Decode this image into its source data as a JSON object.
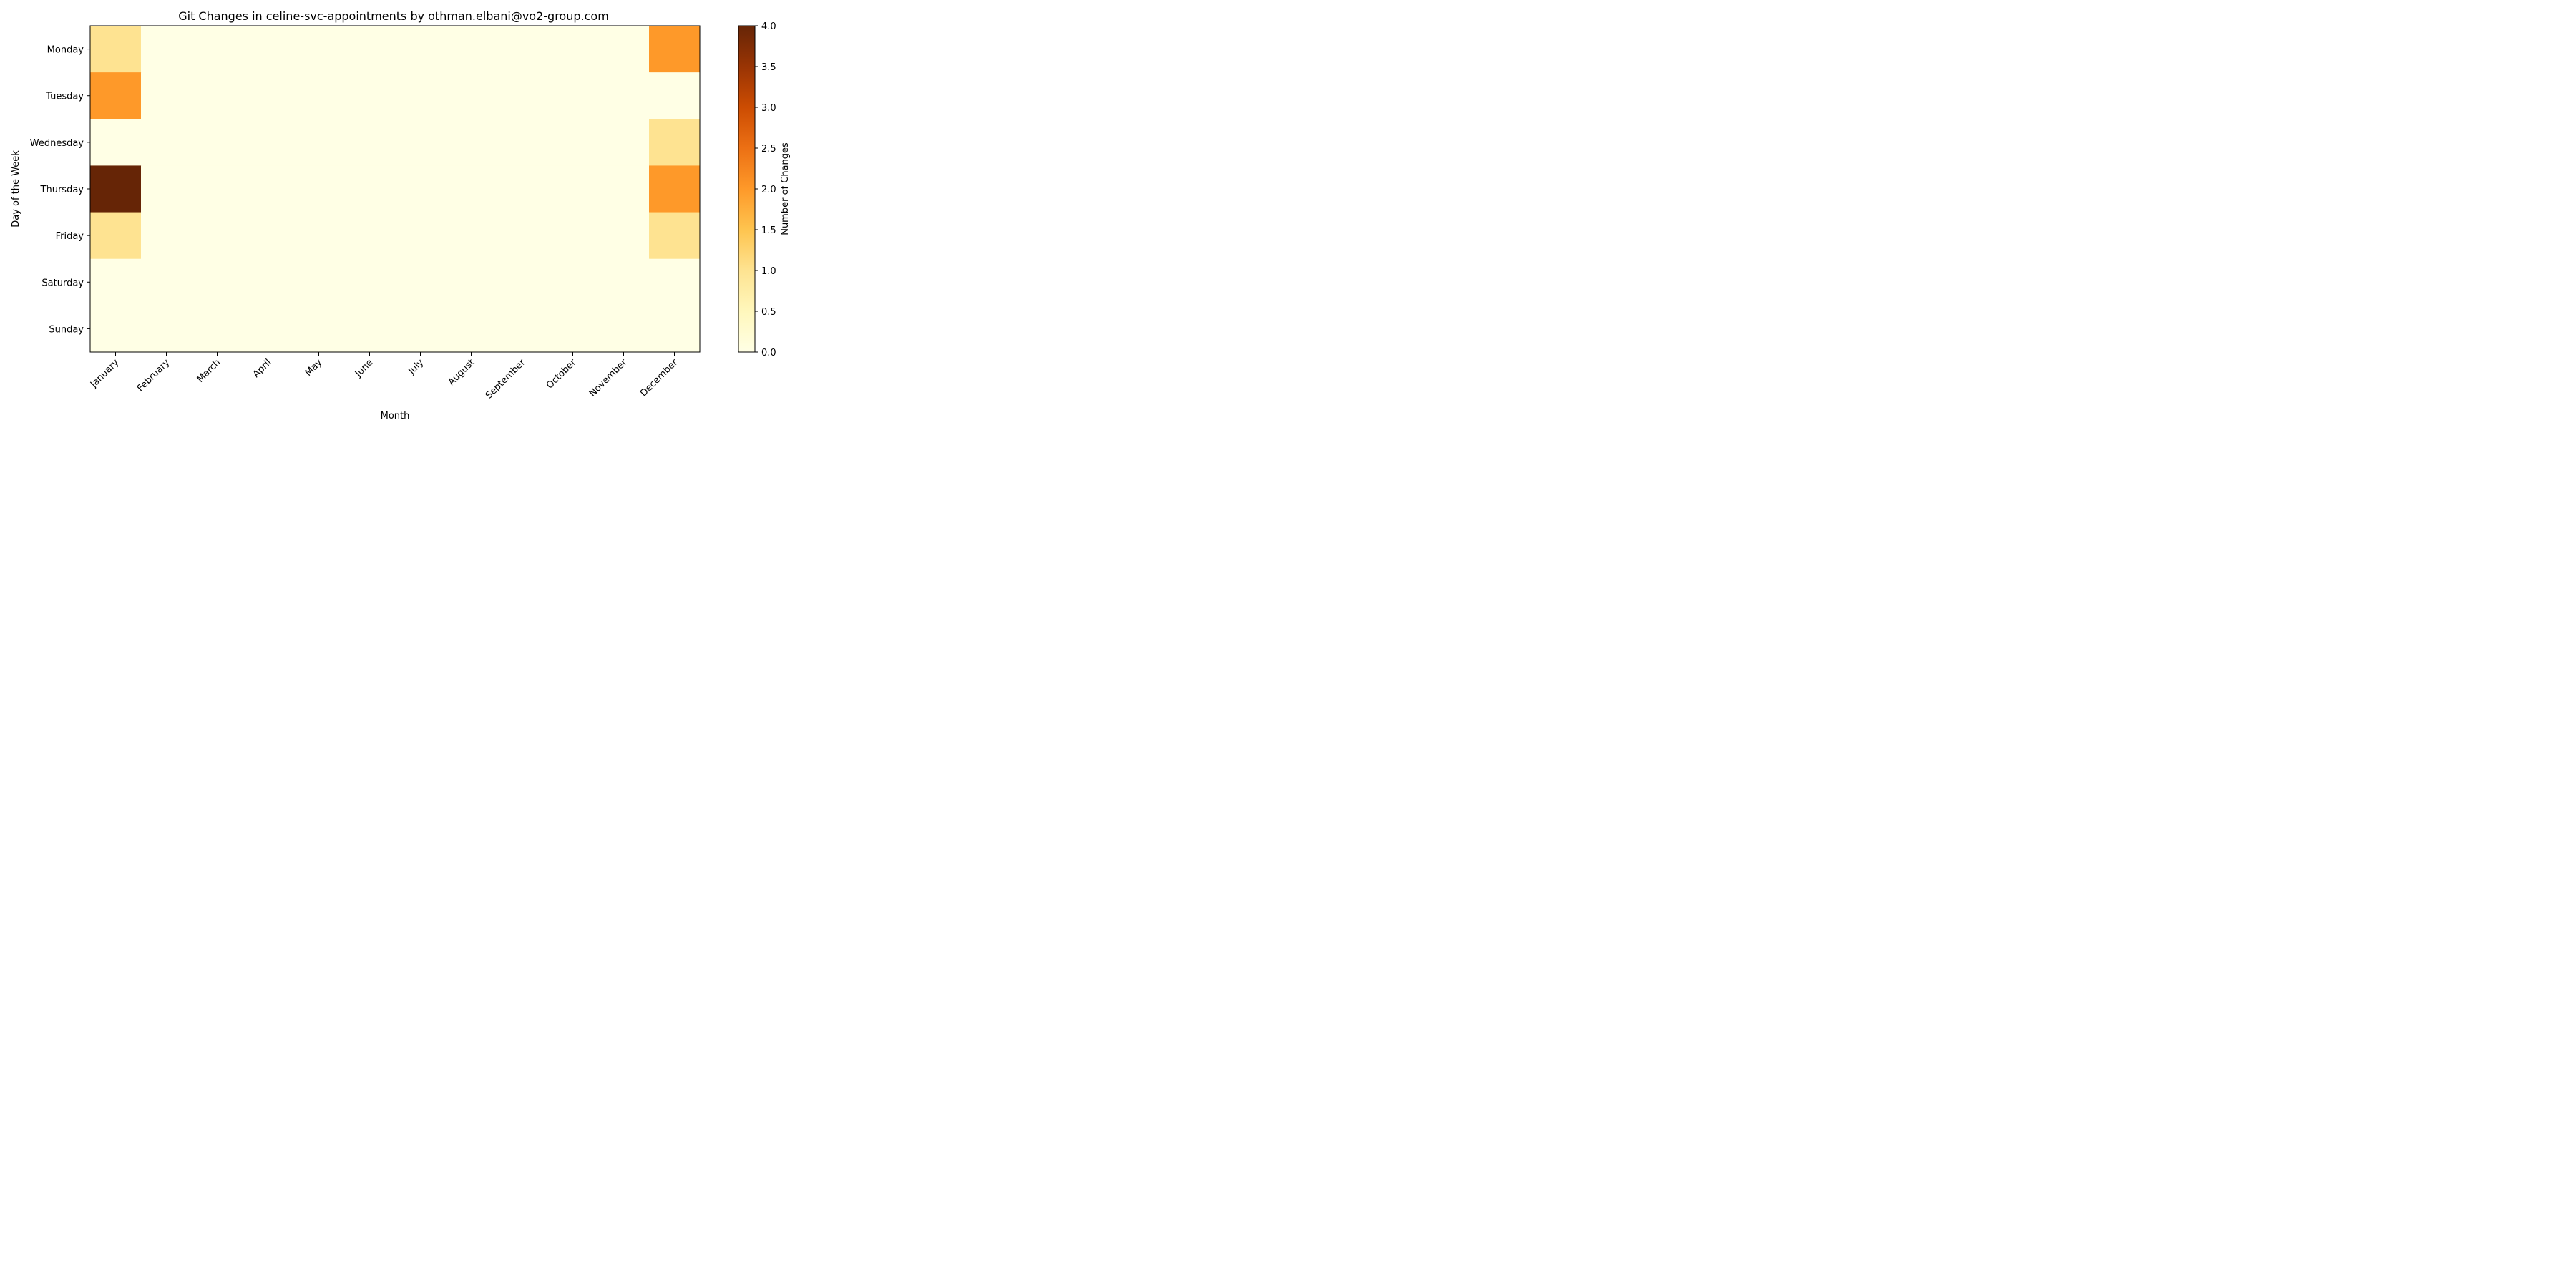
{
  "chart_data": {
    "type": "heatmap",
    "title": "Git Changes in celine-svc-appointments by othman.elbani@vo2-group.com",
    "xlabel": "Month",
    "ylabel": "Day of the Week",
    "x_categories": [
      "January",
      "February",
      "March",
      "April",
      "May",
      "June",
      "July",
      "August",
      "September",
      "October",
      "November",
      "December"
    ],
    "y_categories": [
      "Monday",
      "Tuesday",
      "Wednesday",
      "Thursday",
      "Friday",
      "Saturday",
      "Sunday"
    ],
    "values": [
      [
        1,
        0,
        0,
        0,
        0,
        0,
        0,
        0,
        0,
        0,
        0,
        2
      ],
      [
        2,
        0,
        0,
        0,
        0,
        0,
        0,
        0,
        0,
        0,
        0,
        0
      ],
      [
        0,
        0,
        0,
        0,
        0,
        0,
        0,
        0,
        0,
        0,
        0,
        1
      ],
      [
        4,
        0,
        0,
        0,
        0,
        0,
        0,
        0,
        0,
        0,
        0,
        2
      ],
      [
        1,
        0,
        0,
        0,
        0,
        0,
        0,
        0,
        0,
        0,
        0,
        1
      ],
      [
        0,
        0,
        0,
        0,
        0,
        0,
        0,
        0,
        0,
        0,
        0,
        0
      ],
      [
        0,
        0,
        0,
        0,
        0,
        0,
        0,
        0,
        0,
        0,
        0,
        0
      ]
    ],
    "colormap": "YlOrBr",
    "colorbar": {
      "label": "Number of Changes",
      "range": [
        0,
        4
      ],
      "ticks": [
        "0.0",
        "0.5",
        "1.0",
        "1.5",
        "2.0",
        "2.5",
        "3.0",
        "3.5",
        "4.0"
      ]
    }
  }
}
